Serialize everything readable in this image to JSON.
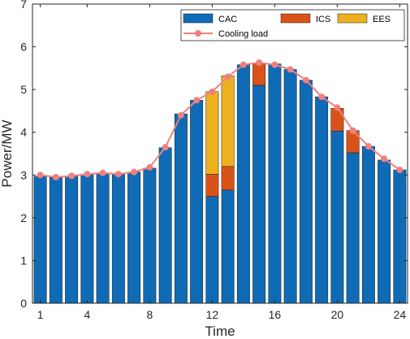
{
  "chart_data": {
    "type": "bar",
    "stacked": true,
    "xlabel": "Time",
    "ylabel": "Power/MW",
    "xlim": [
      0.5,
      24.5
    ],
    "ylim": [
      0,
      7
    ],
    "x": [
      1,
      2,
      3,
      4,
      5,
      6,
      7,
      8,
      9,
      10,
      11,
      12,
      13,
      14,
      15,
      16,
      17,
      18,
      19,
      20,
      21,
      22,
      23,
      24
    ],
    "xticks": [
      1,
      4,
      8,
      12,
      16,
      20,
      24
    ],
    "yticks": [
      0,
      1,
      2,
      3,
      4,
      5,
      6,
      7
    ],
    "grid": false,
    "legend_position": "top-right",
    "series": [
      {
        "name": "CAC",
        "kind": "bar",
        "color": "#0f6bb5",
        "values": [
          2.97,
          2.95,
          2.98,
          3.02,
          3.05,
          3.02,
          3.07,
          3.16,
          3.64,
          4.43,
          4.75,
          2.5,
          2.65,
          5.58,
          5.1,
          5.6,
          5.47,
          5.22,
          4.83,
          4.03,
          3.52,
          3.67,
          3.35,
          3.12
        ]
      },
      {
        "name": "ICS",
        "kind": "bar",
        "color": "#d95319",
        "values": [
          0,
          0,
          0,
          0,
          0,
          0,
          0,
          0,
          0,
          0,
          0,
          0.52,
          0.55,
          0,
          0.52,
          0,
          0,
          0,
          0,
          0.53,
          0.52,
          0,
          0,
          0
        ]
      },
      {
        "name": "EES",
        "kind": "bar",
        "color": "#edb120",
        "values": [
          0,
          0,
          0,
          0,
          0,
          0,
          0,
          0,
          0,
          0,
          0,
          1.93,
          2.12,
          0,
          0,
          0,
          0,
          0,
          0,
          0,
          0,
          0,
          0,
          0
        ]
      },
      {
        "name": "Cooling load",
        "kind": "line",
        "color": "#f08080",
        "values": [
          3.0,
          2.95,
          2.98,
          3.02,
          3.05,
          3.02,
          3.07,
          3.18,
          3.65,
          4.4,
          4.75,
          4.95,
          5.3,
          5.58,
          5.63,
          5.58,
          5.47,
          5.22,
          4.83,
          4.58,
          4.04,
          3.67,
          3.38,
          3.12
        ]
      }
    ]
  }
}
